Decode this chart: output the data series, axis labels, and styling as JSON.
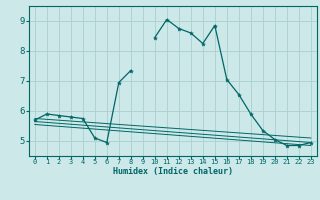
{
  "xlabel": "Humidex (Indice chaleur)",
  "bg_color": "#cce8e8",
  "grid_color": "#aad0d0",
  "line_color": "#006666",
  "xlim": [
    -0.5,
    23.5
  ],
  "ylim": [
    4.5,
    9.5
  ],
  "yticks": [
    5,
    6,
    7,
    8,
    9
  ],
  "xticks": [
    0,
    1,
    2,
    3,
    4,
    5,
    6,
    7,
    8,
    9,
    10,
    11,
    12,
    13,
    14,
    15,
    16,
    17,
    18,
    19,
    20,
    21,
    22,
    23
  ],
  "series": [
    {
      "x": [
        0,
        1,
        2,
        3,
        4,
        5,
        6,
        7,
        8,
        9,
        10,
        11,
        12,
        13,
        14,
        15,
        16,
        17,
        18,
        19,
        20,
        21,
        22,
        23
      ],
      "y": [
        5.7,
        5.9,
        5.85,
        5.8,
        5.75,
        5.1,
        4.95,
        6.95,
        7.35,
        null,
        8.45,
        9.05,
        8.75,
        8.6,
        8.25,
        8.85,
        7.05,
        6.55,
        5.9,
        5.35,
        5.05,
        4.85,
        4.85,
        4.95
      ]
    },
    {
      "x": [
        0,
        23
      ],
      "y": [
        5.65,
        4.95
      ]
    },
    {
      "x": [
        0,
        23
      ],
      "y": [
        5.75,
        5.1
      ]
    },
    {
      "x": [
        0,
        23
      ],
      "y": [
        5.55,
        4.85
      ]
    }
  ]
}
